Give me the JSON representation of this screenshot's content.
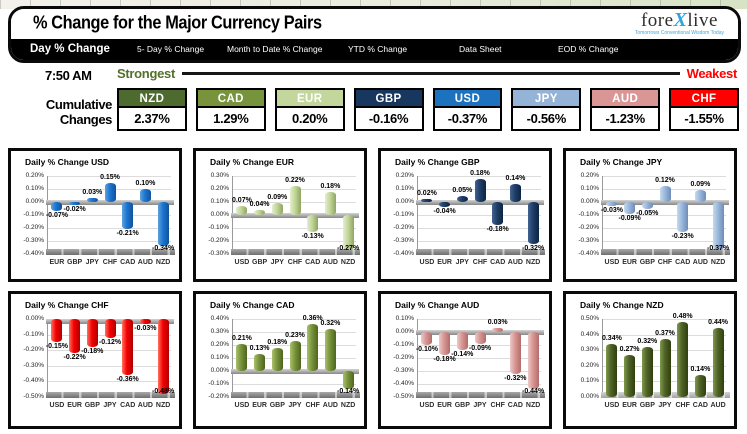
{
  "header": {
    "title": "% Change for the Major Currency Pairs",
    "logo": {
      "part1": "fore",
      "x": "X",
      "part2": "live",
      "tagline": "Tomorrows Conventional Wisdom Today"
    }
  },
  "tabs": [
    {
      "label": "Day % Change",
      "active": true
    },
    {
      "label": "5- Day % Change",
      "active": false
    },
    {
      "label": "Month to Date % Change",
      "active": false
    },
    {
      "label": "YTD % Change",
      "active": false
    },
    {
      "label": "Data Sheet",
      "active": false
    },
    {
      "label": "EOD % Change",
      "active": false
    }
  ],
  "time_label": "7:50 AM",
  "scale": {
    "strongest_label": "Strongest",
    "weakest_label": "Weakest",
    "strongest_color": "#55702c",
    "weakest_color": "#ff0000"
  },
  "cumulative": {
    "row_label": "Cumulative Changes",
    "items": [
      {
        "code": "NZD",
        "value": "2.37%",
        "color": "#4e6b2f"
      },
      {
        "code": "CAD",
        "value": "1.29%",
        "color": "#77933c"
      },
      {
        "code": "EUR",
        "value": "0.20%",
        "color": "#c3d69b"
      },
      {
        "code": "GBP",
        "value": "-0.16%",
        "color": "#17375e"
      },
      {
        "code": "USD",
        "value": "-0.37%",
        "color": "#1d72c0"
      },
      {
        "code": "JPY",
        "value": "-0.56%",
        "color": "#95b3d7"
      },
      {
        "code": "AUD",
        "value": "-1.23%",
        "color": "#d99694"
      },
      {
        "code": "CHF",
        "value": "-1.55%",
        "color": "#ff0000"
      }
    ]
  },
  "chart_data": [
    {
      "type": "bar",
      "title": "Daily % Change USD",
      "categories": [
        "EUR",
        "GBP",
        "JPY",
        "CHF",
        "CAD",
        "AUD",
        "NZD"
      ],
      "values": [
        -0.07,
        -0.02,
        0.03,
        0.15,
        -0.21,
        0.1,
        -0.34
      ],
      "ylim": [
        -0.4,
        0.2
      ],
      "ytick_step": 0.1,
      "grid": true,
      "bar_colors": [
        "#5ea1dd",
        "#1b75cf",
        "#10529c"
      ]
    },
    {
      "type": "bar",
      "title": "Daily % Change EUR",
      "categories": [
        "USD",
        "GBP",
        "JPY",
        "CHF",
        "CAD",
        "AUD",
        "NZD"
      ],
      "values": [
        0.07,
        0.04,
        0.09,
        0.22,
        -0.13,
        0.18,
        -0.27
      ],
      "ylim": [
        -0.3,
        0.3
      ],
      "ytick_step": 0.1,
      "grid": true,
      "bar_colors": [
        "#e3eed0",
        "#c3d69b",
        "#8fa55f"
      ]
    },
    {
      "type": "bar",
      "title": "Daily % Change GBP",
      "categories": [
        "USD",
        "EUR",
        "JPY",
        "CHF",
        "CAD",
        "AUD",
        "NZD"
      ],
      "values": [
        0.02,
        -0.04,
        0.05,
        0.18,
        -0.18,
        0.14,
        -0.32
      ],
      "ylim": [
        -0.4,
        0.2
      ],
      "ytick_step": 0.1,
      "grid": true,
      "bar_colors": [
        "#416292",
        "#1f3f68",
        "#0d2342"
      ]
    },
    {
      "type": "bar",
      "title": "Daily % Change JPY",
      "categories": [
        "USD",
        "EUR",
        "GBP",
        "CHF",
        "CAD",
        "AUD",
        "NZD"
      ],
      "values": [
        -0.03,
        -0.09,
        -0.05,
        0.12,
        -0.23,
        0.09,
        -0.37
      ],
      "ylim": [
        -0.4,
        0.2
      ],
      "ytick_step": 0.1,
      "grid": true,
      "bar_colors": [
        "#c6d9ee",
        "#9ab7db",
        "#6d8cb8"
      ]
    },
    {
      "type": "bar",
      "title": "Daily % Change CHF",
      "categories": [
        "USD",
        "EUR",
        "GBP",
        "JPY",
        "CAD",
        "AUD",
        "NZD"
      ],
      "values": [
        -0.15,
        -0.22,
        -0.18,
        -0.12,
        -0.36,
        -0.03,
        -0.48
      ],
      "ylim": [
        -0.5,
        0.0
      ],
      "ytick_step": 0.1,
      "grid": true,
      "bar_colors": [
        "#ff7161",
        "#f50000",
        "#ae0000"
      ]
    },
    {
      "type": "bar",
      "title": "Daily % Change CAD",
      "categories": [
        "USD",
        "EUR",
        "GBP",
        "JPY",
        "CHF",
        "AUD",
        "NZD"
      ],
      "values": [
        0.21,
        0.13,
        0.18,
        0.23,
        0.36,
        0.32,
        -0.14
      ],
      "ylim": [
        -0.2,
        0.4
      ],
      "ytick_step": 0.1,
      "grid": true,
      "bar_colors": [
        "#a9c16c",
        "#77933c",
        "#4e651c"
      ]
    },
    {
      "type": "bar",
      "title": "Daily % Change AUD",
      "categories": [
        "USD",
        "EUR",
        "GBP",
        "JPY",
        "CHF",
        "CAD",
        "NZD"
      ],
      "values": [
        -0.1,
        -0.18,
        -0.14,
        -0.09,
        0.03,
        -0.32,
        -0.44
      ],
      "ylim": [
        -0.5,
        0.1
      ],
      "ytick_step": 0.1,
      "grid": true,
      "bar_colors": [
        "#eccac8",
        "#d79693",
        "#b26d6b"
      ]
    },
    {
      "type": "bar",
      "title": "Daily % Change NZD",
      "categories": [
        "USD",
        "EUR",
        "GBP",
        "JPY",
        "CHF",
        "CAD",
        "AUD"
      ],
      "values": [
        0.34,
        0.27,
        0.32,
        0.37,
        0.48,
        0.14,
        0.44
      ],
      "ylim": [
        0.0,
        0.5
      ],
      "ytick_step": 0.1,
      "grid": true,
      "bar_colors": [
        "#7e9a4a",
        "#4f6228",
        "#2f400d"
      ]
    }
  ]
}
